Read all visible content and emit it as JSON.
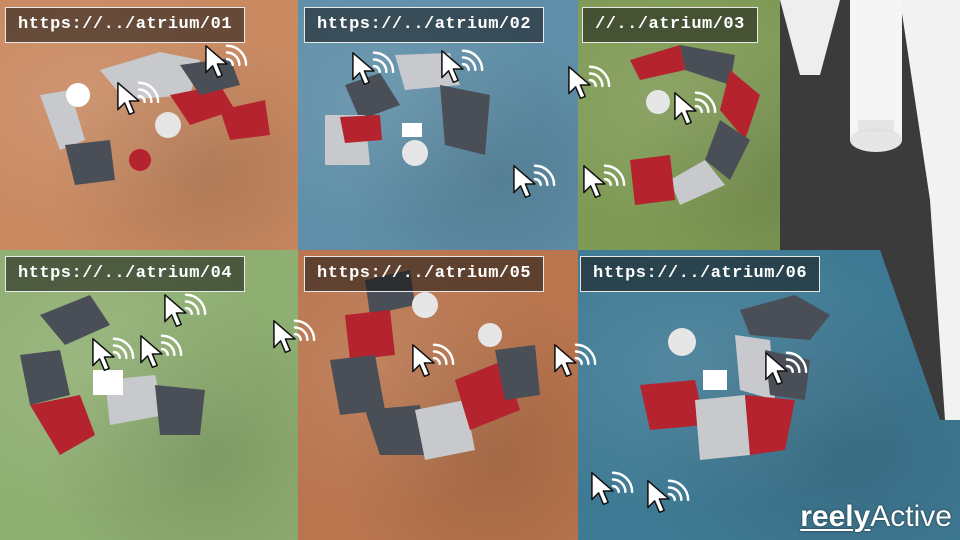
{
  "zones": [
    {
      "label": "https://../atrium/01",
      "color": "#c98a62"
    },
    {
      "label": "https://../atrium/02",
      "color": "#5f8fa8"
    },
    {
      "label": "//../atrium/03",
      "color": "#7f9a55"
    },
    {
      "label": "https://../atrium/04",
      "color": "#8faf72"
    },
    {
      "label": "https://../atrium/05",
      "color": "#b9754e"
    },
    {
      "label": "https://../atrium/06",
      "color": "#3f7a94"
    }
  ],
  "logo": {
    "bold": "reely",
    "regular": "Active"
  },
  "icons": {
    "cursor": "cursor-with-wireless-signal-icon"
  },
  "colors": {
    "seat_dark": "#4a4f57",
    "seat_light": "#c7c9cd",
    "seat_red": "#b5232e",
    "label_border": "#e8e8e8"
  }
}
